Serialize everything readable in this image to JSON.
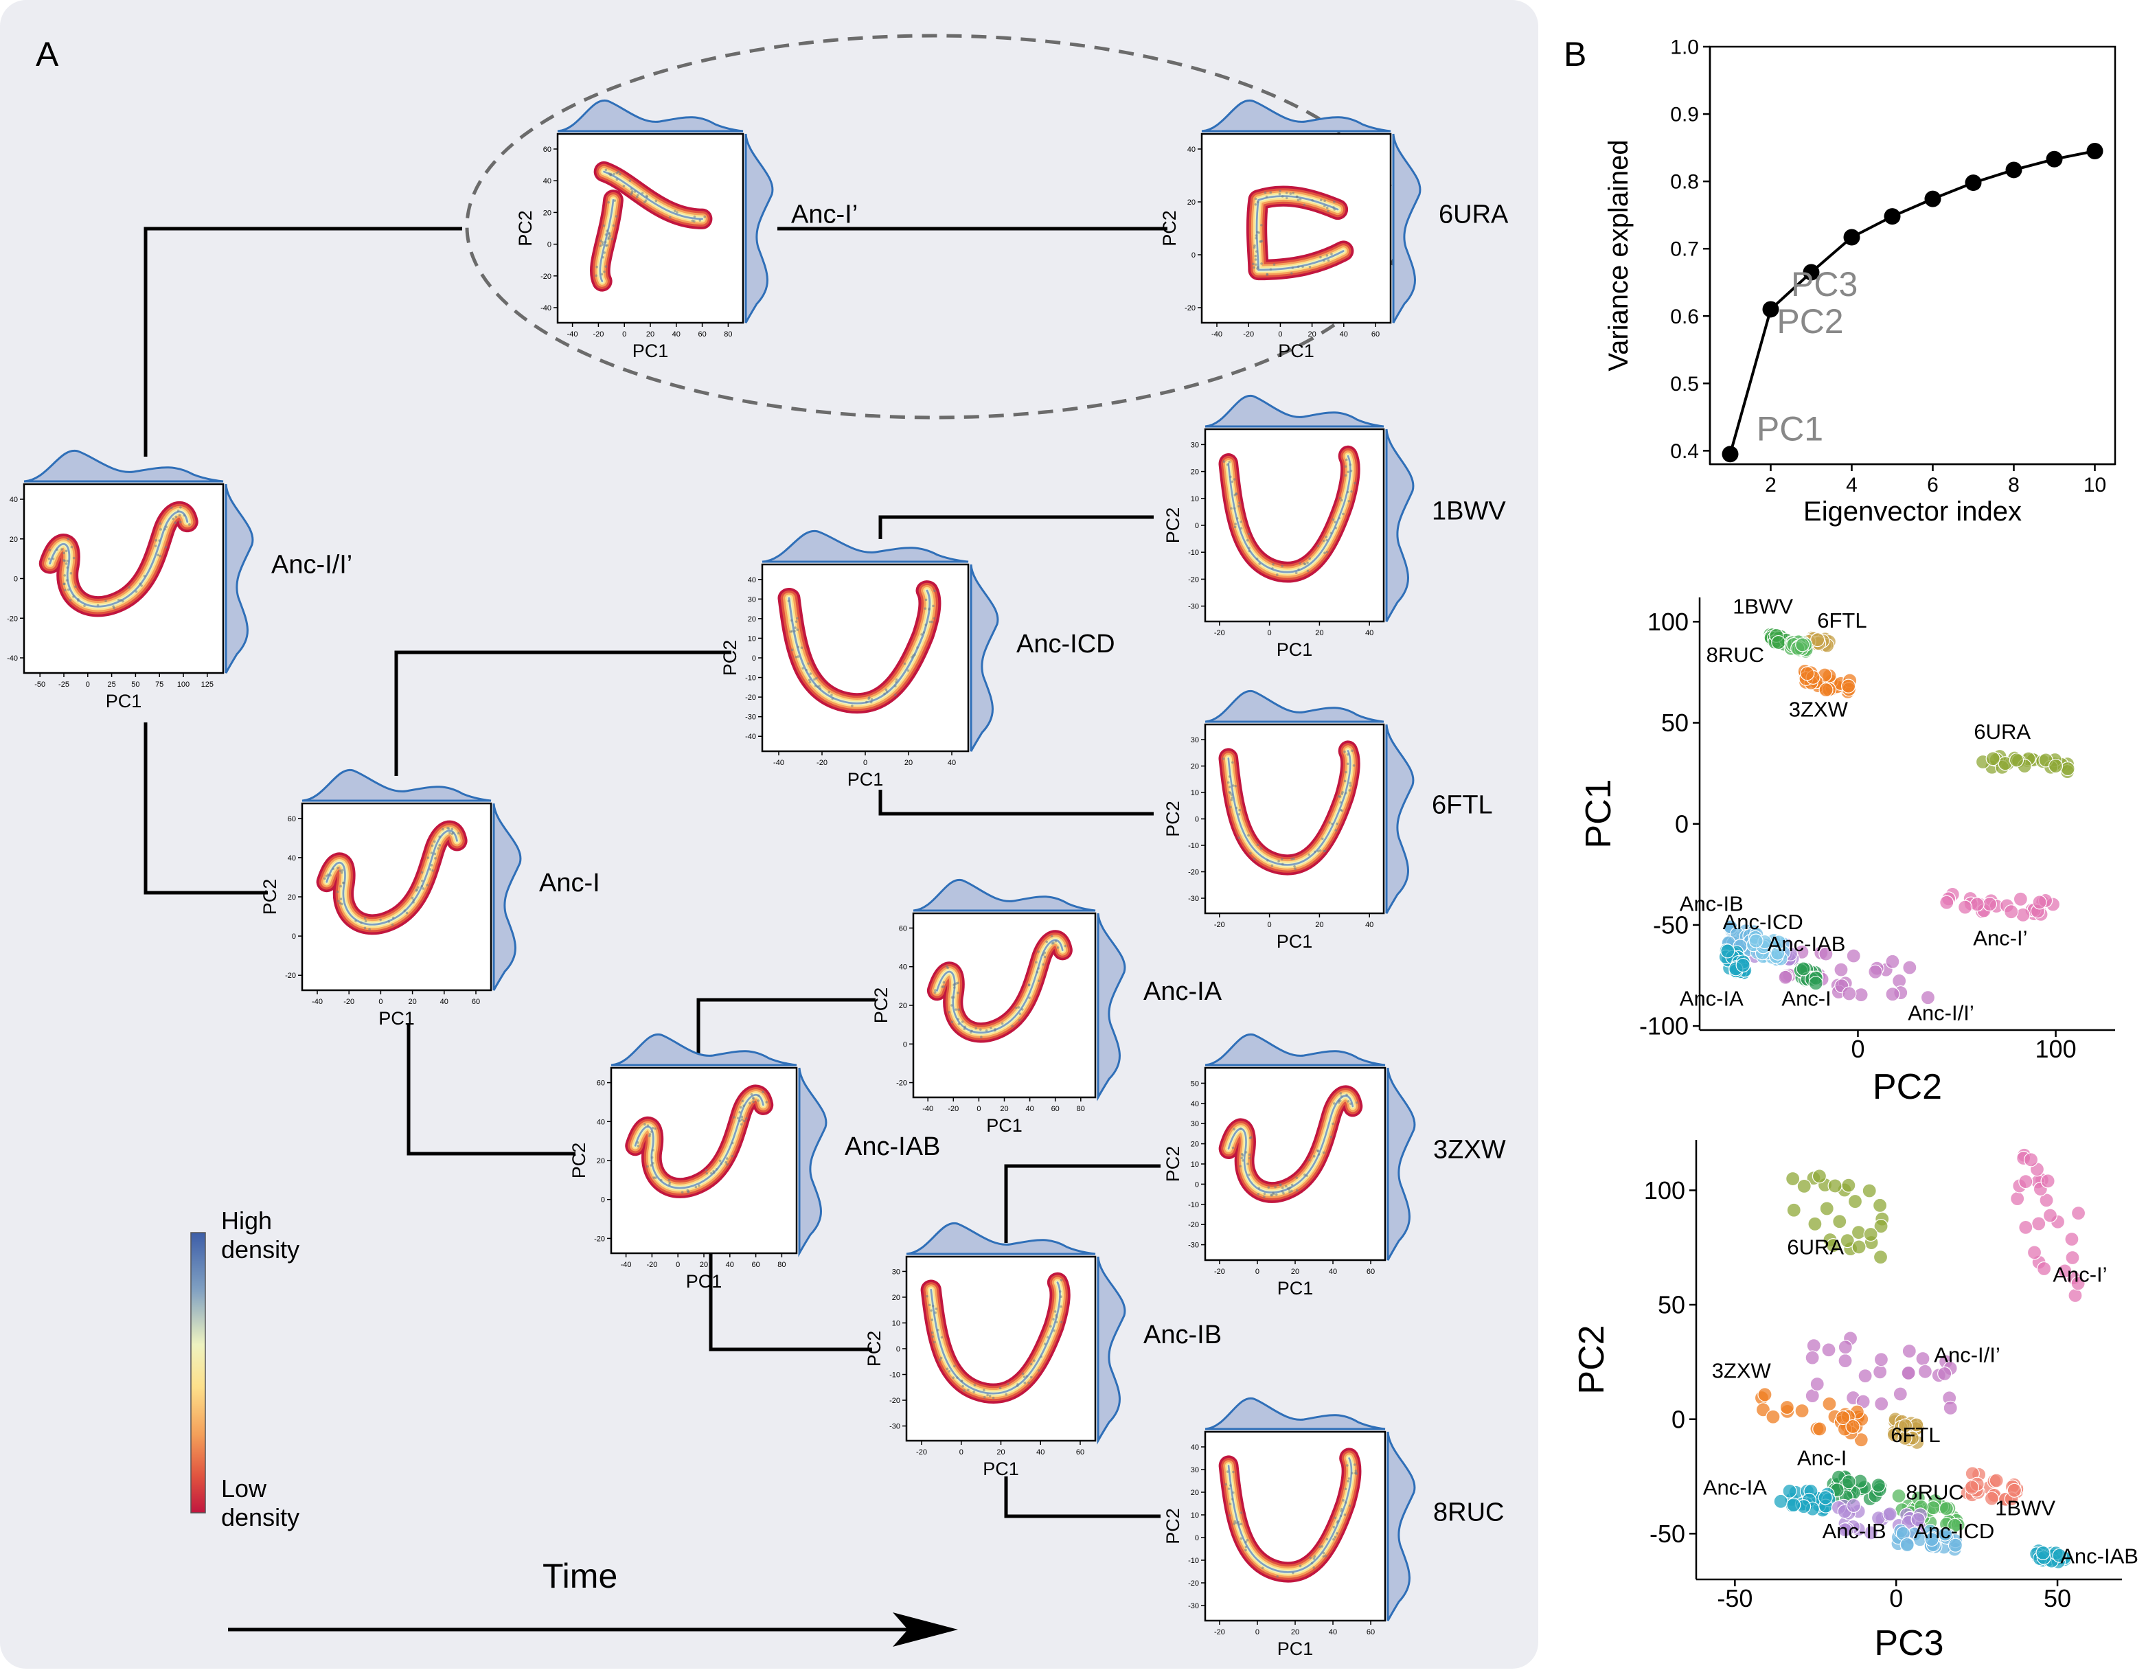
{
  "panel_a": {
    "letter": "A",
    "time_label": "Time",
    "colorbar": {
      "high_lines": [
        "High",
        "density"
      ],
      "low_lines": [
        "Low",
        "density"
      ],
      "colors": [
        "#3d5ea8",
        "#7f9fc2",
        "#eef3c0",
        "#fde08b",
        "#f4a05a",
        "#e0533f",
        "#c1163f"
      ]
    },
    "node_axis": {
      "x": "PC1",
      "y": "PC2"
    },
    "nodes": [
      {
        "id": "anc-ii",
        "label": "Anc-I/I’",
        "shape": "hook",
        "xticks": [
          "-50",
          "-25",
          "0",
          "25",
          "50",
          "75",
          "100",
          "125"
        ],
        "yticks": [
          "40",
          "20",
          "0",
          "-20",
          "-40"
        ]
      },
      {
        "id": "anc-iprime",
        "label": "Anc-I’",
        "shape": "blob",
        "xticks": [
          "-40",
          "-20",
          "0",
          "20",
          "40",
          "60",
          "80"
        ],
        "yticks": [
          "60",
          "40",
          "20",
          "0",
          "-20",
          "-40"
        ]
      },
      {
        "id": "6ura",
        "label": "6URA",
        "shape": "blob2",
        "xticks": [
          "-40",
          "-20",
          "0",
          "20",
          "40",
          "60"
        ],
        "yticks": [
          "40",
          "20",
          "0",
          "-20"
        ]
      },
      {
        "id": "1bwv",
        "label": "1BWV",
        "shape": "v",
        "xticks": [
          "-20",
          "0",
          "20",
          "40"
        ],
        "yticks": [
          "30",
          "20",
          "10",
          "0",
          "-10",
          "-20",
          "-30"
        ]
      },
      {
        "id": "anc-icd",
        "label": "Anc-ICD",
        "shape": "v",
        "xticks": [
          "-40",
          "-20",
          "0",
          "20",
          "40"
        ],
        "yticks": [
          "40",
          "30",
          "20",
          "10",
          "0",
          "-10",
          "-20",
          "-30",
          "-40"
        ]
      },
      {
        "id": "6ftl",
        "label": "6FTL",
        "shape": "v",
        "xticks": [
          "-20",
          "0",
          "20",
          "40"
        ],
        "yticks": [
          "30",
          "20",
          "10",
          "0",
          "-10",
          "-20",
          "-30"
        ]
      },
      {
        "id": "anc-i",
        "label": "Anc-I",
        "shape": "hook",
        "xticks": [
          "-40",
          "-20",
          "0",
          "20",
          "40",
          "60"
        ],
        "yticks": [
          "60",
          "40",
          "20",
          "0",
          "-20"
        ]
      },
      {
        "id": "anc-ia",
        "label": "Anc-IA",
        "shape": "hook",
        "xticks": [
          "-40",
          "-20",
          "0",
          "20",
          "40",
          "60",
          "80"
        ],
        "yticks": [
          "60",
          "40",
          "20",
          "0",
          "-20"
        ]
      },
      {
        "id": "anc-iab",
        "label": "Anc-IAB",
        "shape": "hook",
        "xticks": [
          "-40",
          "-20",
          "0",
          "20",
          "40",
          "60",
          "80"
        ],
        "yticks": [
          "60",
          "40",
          "20",
          "0",
          "-20"
        ]
      },
      {
        "id": "3zxw",
        "label": "3ZXW",
        "shape": "hook",
        "xticks": [
          "-20",
          "0",
          "20",
          "40",
          "60"
        ],
        "yticks": [
          "50",
          "40",
          "30",
          "20",
          "10",
          "0",
          "-10",
          "-20",
          "-30"
        ]
      },
      {
        "id": "anc-ib",
        "label": "Anc-IB",
        "shape": "v",
        "xticks": [
          "-20",
          "0",
          "20",
          "40",
          "60"
        ],
        "yticks": [
          "30",
          "20",
          "10",
          "0",
          "-10",
          "-20",
          "-30"
        ]
      },
      {
        "id": "8ruc",
        "label": "8RUC",
        "shape": "v",
        "xticks": [
          "-20",
          "0",
          "20",
          "40",
          "60"
        ],
        "yticks": [
          "40",
          "30",
          "20",
          "10",
          "0",
          "-10",
          "-20",
          "-30"
        ]
      }
    ]
  },
  "panel_b": {
    "letter": "B"
  },
  "chart_data": [
    {
      "type": "line",
      "title": "",
      "xlabel": "Eigenvector index",
      "ylabel": "Variance explained",
      "x": [
        1,
        2,
        3,
        4,
        5,
        6,
        7,
        8,
        9,
        10
      ],
      "values": [
        0.395,
        0.61,
        0.665,
        0.717,
        0.748,
        0.774,
        0.798,
        0.817,
        0.833,
        0.845
      ],
      "xlim": [
        0.5,
        10.5
      ],
      "ylim": [
        0.38,
        1.0
      ],
      "xticks": [
        "2",
        "4",
        "6",
        "8",
        "10"
      ],
      "yticks": [
        "0.4",
        "0.5",
        "0.6",
        "0.7",
        "0.8",
        "0.9",
        "1.0"
      ],
      "annotations": [
        {
          "text": "PC1",
          "x": 1.65,
          "y": 0.415
        },
        {
          "text": "PC2",
          "x": 2.15,
          "y": 0.575
        },
        {
          "text": "PC3",
          "x": 2.5,
          "y": 0.63
        }
      ],
      "color": "#000000",
      "annotation_color": "#888888"
    },
    {
      "type": "scatter",
      "xlabel": "PC2",
      "ylabel": "PC1",
      "xlim": [
        -80,
        130
      ],
      "ylim": [
        -102,
        112
      ],
      "xticks": [
        "0",
        "100"
      ],
      "yticks": [
        "100",
        "50",
        "0",
        "-50",
        "-100"
      ],
      "series": [
        {
          "name": "1BWV",
          "color": "#3aa344",
          "center": [
            -40,
            91
          ],
          "spread": [
            5,
            2
          ]
        },
        {
          "name": "6FTL",
          "color": "#c7a14a",
          "center": [
            -20,
            90
          ],
          "spread": [
            6,
            2
          ]
        },
        {
          "name": "8RUC",
          "color": "#55b75e",
          "center": [
            -30,
            88
          ],
          "spread": [
            4,
            2
          ]
        },
        {
          "name": "3ZXW",
          "color": "#ef7d22",
          "center": [
            -15,
            70
          ],
          "spread": [
            12,
            4
          ]
        },
        {
          "name": "6URA",
          "color": "#8fa838",
          "center": [
            85,
            30
          ],
          "spread": [
            22,
            3
          ]
        },
        {
          "name": "Anc-I’",
          "color": "#e377b4",
          "center": [
            72,
            -40
          ],
          "spread": [
            28,
            5
          ]
        },
        {
          "name": "Anc-I/I’",
          "color": "#c37ac4",
          "center": [
            0,
            -75
          ],
          "spread": [
            38,
            10
          ]
        },
        {
          "name": "Anc-IAB",
          "color": "#b08ad6",
          "center": [
            -45,
            -62
          ],
          "spread": [
            12,
            5
          ]
        },
        {
          "name": "Anc-IB",
          "color": "#6fb7e0",
          "center": [
            -58,
            -57
          ],
          "spread": [
            8,
            5
          ]
        },
        {
          "name": "Anc-ICD",
          "color": "#7ec7e8",
          "center": [
            -45,
            -62
          ],
          "spread": [
            8,
            5
          ]
        },
        {
          "name": "Anc-IA",
          "color": "#1ea6c1",
          "center": [
            -62,
            -68
          ],
          "spread": [
            5,
            5
          ]
        },
        {
          "name": "Anc-I",
          "color": "#2c9c54",
          "center": [
            -25,
            -75
          ],
          "spread": [
            4,
            3
          ]
        }
      ],
      "labels": [
        {
          "text": "1BWV",
          "x": -48,
          "y": 104
        },
        {
          "text": "6FTL",
          "x": -8,
          "y": 97
        },
        {
          "text": "8RUC",
          "x": -62,
          "y": 80
        },
        {
          "text": "3ZXW",
          "x": -20,
          "y": 53
        },
        {
          "text": "6URA",
          "x": 73,
          "y": 42
        },
        {
          "text": "Anc-I’",
          "x": 72,
          "y": -60
        },
        {
          "text": "Anc-I/I’",
          "x": 42,
          "y": -97
        },
        {
          "text": "Anc-IB",
          "x": -74,
          "y": -43
        },
        {
          "text": "Anc-ICD",
          "x": -48,
          "y": -52
        },
        {
          "text": "Anc-IAB",
          "x": -26,
          "y": -63
        },
        {
          "text": "Anc-IA",
          "x": -74,
          "y": -90
        },
        {
          "text": "Anc-I",
          "x": -26,
          "y": -90
        }
      ]
    },
    {
      "type": "scatter",
      "xlabel": "PC3",
      "ylabel": "PC2",
      "xlim": [
        -62,
        70
      ],
      "ylim": [
        -70,
        122
      ],
      "xticks": [
        "-50",
        "0",
        "50"
      ],
      "yticks": [
        "100",
        "50",
        "0",
        "-50"
      ],
      "series": [
        {
          "name": "6URA",
          "color": "#8fa838",
          "center": [
            -18,
            90
          ],
          "spread": [
            15,
            15
          ]
        },
        {
          "name": "Anc-I’",
          "color": "#e377b4",
          "center": [
            47,
            85
          ],
          "spread": [
            10,
            25
          ]
        },
        {
          "name": "Anc-I/I’",
          "color": "#c37ac4",
          "center": [
            -5,
            20
          ],
          "spread": [
            25,
            15
          ]
        },
        {
          "name": "3ZXW",
          "color": "#ef7d22",
          "center": [
            -20,
            0
          ],
          "spread": [
            22,
            8
          ]
        },
        {
          "name": "6FTL",
          "color": "#c7a14a",
          "center": [
            3,
            -5
          ],
          "spread": [
            4,
            4
          ]
        },
        {
          "name": "Anc-I",
          "color": "#2c9c54",
          "center": [
            -12,
            -30
          ],
          "spread": [
            8,
            5
          ]
        },
        {
          "name": "8RUC",
          "color": "#55b75e",
          "center": [
            10,
            -40
          ],
          "spread": [
            10,
            5
          ]
        },
        {
          "name": "1BWV",
          "color": "#f08070",
          "center": [
            30,
            -30
          ],
          "spread": [
            8,
            5
          ]
        },
        {
          "name": "Anc-IA",
          "color": "#1ea6c1",
          "center": [
            -28,
            -35
          ],
          "spread": [
            8,
            4
          ]
        },
        {
          "name": "Anc-IB",
          "color": "#b08ad6",
          "center": [
            -5,
            -45
          ],
          "spread": [
            15,
            6
          ]
        },
        {
          "name": "Anc-ICD",
          "color": "#6fb7e0",
          "center": [
            10,
            -52
          ],
          "spread": [
            10,
            4
          ]
        },
        {
          "name": "Anc-IAB",
          "color": "#1ea6c1",
          "center": [
            48,
            -60
          ],
          "spread": [
            5,
            2
          ]
        }
      ],
      "labels": [
        {
          "text": "6URA",
          "x": -25,
          "y": 72
        },
        {
          "text": "Anc-I’",
          "x": 57,
          "y": 60
        },
        {
          "text": "Anc-I/I’",
          "x": 22,
          "y": 25
        },
        {
          "text": "3ZXW",
          "x": -48,
          "y": 18
        },
        {
          "text": "6FTL",
          "x": 6,
          "y": -10
        },
        {
          "text": "Anc-I",
          "x": -23,
          "y": -20
        },
        {
          "text": "Anc-IA",
          "x": -50,
          "y": -33
        },
        {
          "text": "8RUC",
          "x": 12,
          "y": -35
        },
        {
          "text": "1BWV",
          "x": 40,
          "y": -42
        },
        {
          "text": "Anc-IB",
          "x": -13,
          "y": -52
        },
        {
          "text": "Anc-ICD",
          "x": 18,
          "y": -52
        },
        {
          "text": "Anc-IAB",
          "x": 63,
          "y": -63
        }
      ]
    }
  ]
}
